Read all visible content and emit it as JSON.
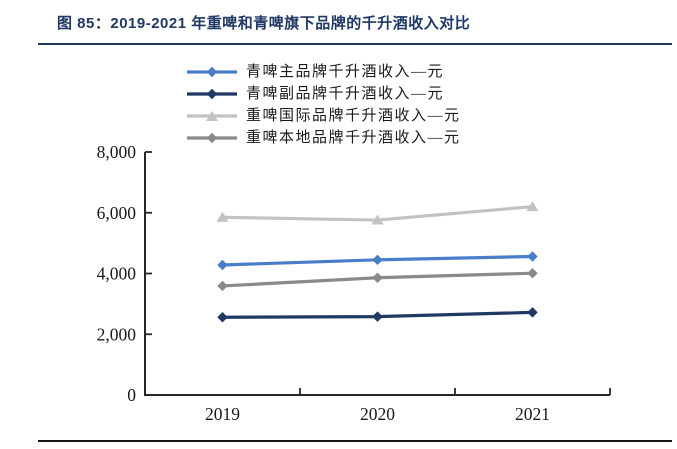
{
  "title": {
    "text": "图 85：2019-2021 年重啤和青啤旗下品牌的千升酒收入对比"
  },
  "colors": {
    "title_text": "#1f3864",
    "title_rule": "#1f3864",
    "bottom_rule": "#161616",
    "axis": "#262626",
    "tick_label": "#1a1a1a"
  },
  "chart_data": {
    "type": "line",
    "categories": [
      "2019",
      "2020",
      "2021"
    ],
    "series": [
      {
        "name": "青啤主品牌千升酒收入—元",
        "values": [
          4280,
          4450,
          4560
        ],
        "color": "#4a7dc9",
        "marker": "diamond"
      },
      {
        "name": "青啤副品牌千升酒收入—元",
        "values": [
          2560,
          2580,
          2720
        ],
        "color": "#1f3864",
        "marker": "diamond"
      },
      {
        "name": "重啤国际品牌千升酒收入—元",
        "values": [
          5850,
          5760,
          6200
        ],
        "color": "#c2c2c2",
        "marker": "triangle"
      },
      {
        "name": "重啤本地品牌千升酒收入—元",
        "values": [
          3590,
          3860,
          4010
        ],
        "color": "#8a8a8a",
        "marker": "diamond"
      }
    ],
    "xlabel": "",
    "ylabel": "",
    "ylim": [
      0,
      8000
    ],
    "y_ticks": [
      0,
      2000,
      4000,
      6000,
      8000
    ],
    "y_tick_labels": [
      "0",
      "2,000",
      "4,000",
      "6,000",
      "8,000"
    ],
    "grid": false,
    "legend_position": "top-center-inside"
  }
}
